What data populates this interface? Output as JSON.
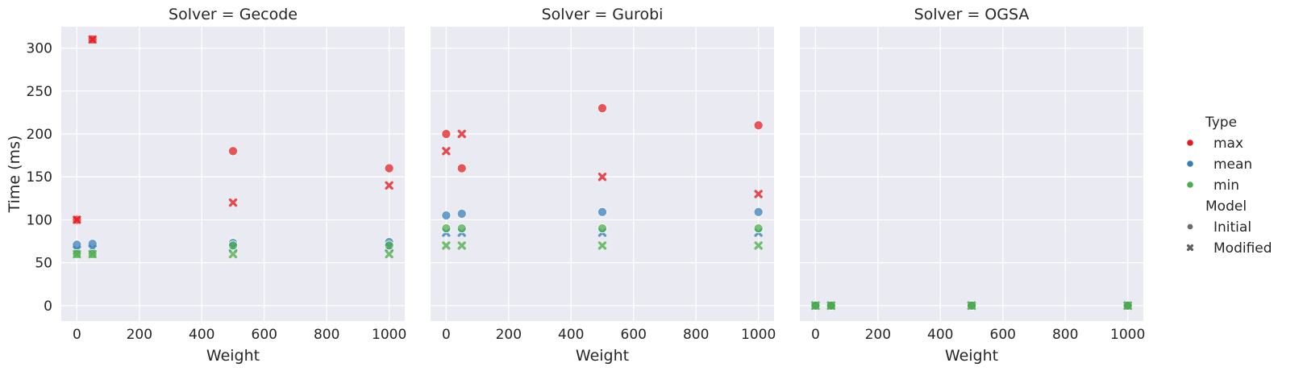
{
  "chart_data": {
    "type": "scatter",
    "ylabel": "Time (ms)",
    "xlabel": "Weight",
    "xlim": [
      -50,
      1050
    ],
    "ylim": [
      -18,
      325
    ],
    "xticks": [
      0,
      200,
      400,
      600,
      800,
      1000
    ],
    "yticks": [
      0,
      50,
      100,
      150,
      200,
      250,
      300
    ],
    "grid": true,
    "hue_title": "Type",
    "style_title": "Model",
    "types": [
      {
        "name": "max",
        "color": "#e41a1c"
      },
      {
        "name": "mean",
        "color": "#377eb8"
      },
      {
        "name": "min",
        "color": "#4daf4a"
      }
    ],
    "models": [
      {
        "name": "Initial",
        "marker": "circle"
      },
      {
        "name": "Modified",
        "marker": "x"
      }
    ],
    "legend_position": "right",
    "panels": [
      {
        "title": "Solver = Gecode",
        "points": [
          {
            "x": 0,
            "y": 100,
            "type": "max",
            "model": "Initial"
          },
          {
            "x": 0,
            "y": 100,
            "type": "max",
            "model": "Modified"
          },
          {
            "x": 50,
            "y": 310,
            "type": "max",
            "model": "Initial"
          },
          {
            "x": 50,
            "y": 310,
            "type": "max",
            "model": "Modified"
          },
          {
            "x": 500,
            "y": 180,
            "type": "max",
            "model": "Initial"
          },
          {
            "x": 500,
            "y": 120,
            "type": "max",
            "model": "Modified"
          },
          {
            "x": 1000,
            "y": 160,
            "type": "max",
            "model": "Initial"
          },
          {
            "x": 1000,
            "y": 140,
            "type": "max",
            "model": "Modified"
          },
          {
            "x": 0,
            "y": 71,
            "type": "mean",
            "model": "Initial"
          },
          {
            "x": 0,
            "y": 65,
            "type": "mean",
            "model": "Modified"
          },
          {
            "x": 50,
            "y": 72,
            "type": "mean",
            "model": "Initial"
          },
          {
            "x": 50,
            "y": 66,
            "type": "mean",
            "model": "Modified"
          },
          {
            "x": 500,
            "y": 73,
            "type": "mean",
            "model": "Initial"
          },
          {
            "x": 500,
            "y": 68,
            "type": "mean",
            "model": "Modified"
          },
          {
            "x": 1000,
            "y": 74,
            "type": "mean",
            "model": "Initial"
          },
          {
            "x": 1000,
            "y": 68,
            "type": "mean",
            "model": "Modified"
          },
          {
            "x": 0,
            "y": 60,
            "type": "min",
            "model": "Initial"
          },
          {
            "x": 0,
            "y": 60,
            "type": "min",
            "model": "Modified"
          },
          {
            "x": 50,
            "y": 60,
            "type": "min",
            "model": "Initial"
          },
          {
            "x": 50,
            "y": 60,
            "type": "min",
            "model": "Modified"
          },
          {
            "x": 500,
            "y": 70,
            "type": "min",
            "model": "Initial"
          },
          {
            "x": 500,
            "y": 60,
            "type": "min",
            "model": "Modified"
          },
          {
            "x": 1000,
            "y": 70,
            "type": "min",
            "model": "Initial"
          },
          {
            "x": 1000,
            "y": 60,
            "type": "min",
            "model": "Modified"
          }
        ]
      },
      {
        "title": "Solver = Gurobi",
        "points": [
          {
            "x": 0,
            "y": 200,
            "type": "max",
            "model": "Initial"
          },
          {
            "x": 0,
            "y": 180,
            "type": "max",
            "model": "Modified"
          },
          {
            "x": 50,
            "y": 160,
            "type": "max",
            "model": "Initial"
          },
          {
            "x": 50,
            "y": 200,
            "type": "max",
            "model": "Modified"
          },
          {
            "x": 500,
            "y": 230,
            "type": "max",
            "model": "Initial"
          },
          {
            "x": 500,
            "y": 150,
            "type": "max",
            "model": "Modified"
          },
          {
            "x": 1000,
            "y": 210,
            "type": "max",
            "model": "Initial"
          },
          {
            "x": 1000,
            "y": 130,
            "type": "max",
            "model": "Modified"
          },
          {
            "x": 0,
            "y": 105,
            "type": "mean",
            "model": "Initial"
          },
          {
            "x": 0,
            "y": 85,
            "type": "mean",
            "model": "Modified"
          },
          {
            "x": 50,
            "y": 107,
            "type": "mean",
            "model": "Initial"
          },
          {
            "x": 50,
            "y": 85,
            "type": "mean",
            "model": "Modified"
          },
          {
            "x": 500,
            "y": 109,
            "type": "mean",
            "model": "Initial"
          },
          {
            "x": 500,
            "y": 85,
            "type": "mean",
            "model": "Modified"
          },
          {
            "x": 1000,
            "y": 109,
            "type": "mean",
            "model": "Initial"
          },
          {
            "x": 1000,
            "y": 85,
            "type": "mean",
            "model": "Modified"
          },
          {
            "x": 0,
            "y": 90,
            "type": "min",
            "model": "Initial"
          },
          {
            "x": 0,
            "y": 70,
            "type": "min",
            "model": "Modified"
          },
          {
            "x": 50,
            "y": 90,
            "type": "min",
            "model": "Initial"
          },
          {
            "x": 50,
            "y": 70,
            "type": "min",
            "model": "Modified"
          },
          {
            "x": 500,
            "y": 90,
            "type": "min",
            "model": "Initial"
          },
          {
            "x": 500,
            "y": 70,
            "type": "min",
            "model": "Modified"
          },
          {
            "x": 1000,
            "y": 90,
            "type": "min",
            "model": "Initial"
          },
          {
            "x": 1000,
            "y": 70,
            "type": "min",
            "model": "Modified"
          }
        ]
      },
      {
        "title": "Solver = OGSA",
        "points": [
          {
            "x": 0,
            "y": 0,
            "type": "max",
            "model": "Initial"
          },
          {
            "x": 0,
            "y": 0,
            "type": "max",
            "model": "Modified"
          },
          {
            "x": 50,
            "y": 0,
            "type": "max",
            "model": "Initial"
          },
          {
            "x": 50,
            "y": 0,
            "type": "max",
            "model": "Modified"
          },
          {
            "x": 500,
            "y": 0,
            "type": "max",
            "model": "Initial"
          },
          {
            "x": 500,
            "y": 0,
            "type": "max",
            "model": "Modified"
          },
          {
            "x": 1000,
            "y": 0,
            "type": "max",
            "model": "Initial"
          },
          {
            "x": 1000,
            "y": 0,
            "type": "max",
            "model": "Modified"
          },
          {
            "x": 0,
            "y": 0,
            "type": "mean",
            "model": "Initial"
          },
          {
            "x": 0,
            "y": 0,
            "type": "mean",
            "model": "Modified"
          },
          {
            "x": 50,
            "y": 0,
            "type": "mean",
            "model": "Initial"
          },
          {
            "x": 50,
            "y": 0,
            "type": "mean",
            "model": "Modified"
          },
          {
            "x": 500,
            "y": 0,
            "type": "mean",
            "model": "Initial"
          },
          {
            "x": 500,
            "y": 0,
            "type": "mean",
            "model": "Modified"
          },
          {
            "x": 1000,
            "y": 0,
            "type": "mean",
            "model": "Initial"
          },
          {
            "x": 1000,
            "y": 0,
            "type": "mean",
            "model": "Modified"
          },
          {
            "x": 0,
            "y": 0,
            "type": "min",
            "model": "Initial"
          },
          {
            "x": 0,
            "y": 0,
            "type": "min",
            "model": "Modified"
          },
          {
            "x": 50,
            "y": 0,
            "type": "min",
            "model": "Initial"
          },
          {
            "x": 50,
            "y": 0,
            "type": "min",
            "model": "Modified"
          },
          {
            "x": 500,
            "y": 0,
            "type": "min",
            "model": "Initial"
          },
          {
            "x": 500,
            "y": 0,
            "type": "min",
            "model": "Modified"
          },
          {
            "x": 1000,
            "y": 0,
            "type": "min",
            "model": "Initial"
          },
          {
            "x": 1000,
            "y": 0,
            "type": "min",
            "model": "Modified"
          }
        ]
      }
    ]
  }
}
